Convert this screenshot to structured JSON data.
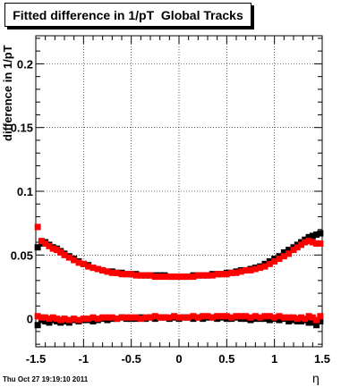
{
  "chart_data": {
    "type": "scatter",
    "title": "Fitted difference in 1/pT  Global Tracks",
    "xlabel": "η",
    "ylabel": "difference in 1/pT",
    "xlim": [
      -1.5,
      1.5
    ],
    "ylim": [
      -0.022,
      0.222
    ],
    "x_ticks": [
      "-1.5",
      "-1",
      "-0.5",
      "0",
      "0.5",
      "1",
      "1.5"
    ],
    "x_tick_values": [
      -1.5,
      -1,
      -0.5,
      0,
      0.5,
      1,
      1.5
    ],
    "y_ticks": [
      "0",
      "0.05",
      "0.1",
      "0.15",
      "0.2"
    ],
    "y_tick_values": [
      0,
      0.05,
      0.1,
      0.15,
      0.2
    ],
    "grid": true,
    "timestamp": "Thu Oct 27 19:19:10 2011",
    "series": [
      {
        "color": "#000000",
        "marker": "square",
        "x": [
          -1.48,
          -1.44,
          -1.4,
          -1.36,
          -1.32,
          -1.28,
          -1.24,
          -1.2,
          -1.15,
          -1.1,
          -1.05,
          -1.0,
          -0.95,
          -0.9,
          -0.85,
          -0.8,
          -0.75,
          -0.7,
          -0.65,
          -0.6,
          -0.55,
          -0.5,
          -0.45,
          -0.4,
          -0.35,
          -0.3,
          -0.25,
          -0.2,
          -0.15,
          -0.1,
          -0.05,
          0.0,
          0.05,
          0.1,
          0.15,
          0.2,
          0.25,
          0.3,
          0.35,
          0.4,
          0.45,
          0.5,
          0.55,
          0.6,
          0.65,
          0.7,
          0.75,
          0.8,
          0.85,
          0.9,
          0.95,
          1.0,
          1.05,
          1.1,
          1.15,
          1.2,
          1.24,
          1.28,
          1.32,
          1.36,
          1.4,
          1.44,
          1.48
        ],
        "y": [
          0.056,
          0.059,
          0.06,
          0.058,
          0.056,
          0.055,
          0.053,
          0.051,
          0.049,
          0.047,
          0.045,
          0.043,
          0.042,
          0.04,
          0.039,
          0.038,
          0.037,
          0.037,
          0.036,
          0.036,
          0.035,
          0.035,
          0.035,
          0.034,
          0.034,
          0.034,
          0.034,
          0.034,
          0.034,
          0.033,
          0.033,
          0.033,
          0.033,
          0.033,
          0.034,
          0.034,
          0.034,
          0.034,
          0.035,
          0.035,
          0.035,
          0.036,
          0.036,
          0.037,
          0.038,
          0.038,
          0.039,
          0.04,
          0.041,
          0.043,
          0.045,
          0.047,
          0.049,
          0.052,
          0.054,
          0.056,
          0.058,
          0.06,
          0.062,
          0.064,
          0.065,
          0.066,
          0.067
        ]
      },
      {
        "color": "#ff0000",
        "marker": "square",
        "x": [
          -1.48,
          -1.44,
          -1.4,
          -1.36,
          -1.32,
          -1.28,
          -1.24,
          -1.2,
          -1.15,
          -1.1,
          -1.05,
          -1.0,
          -0.95,
          -0.9,
          -0.85,
          -0.8,
          -0.75,
          -0.7,
          -0.65,
          -0.6,
          -0.55,
          -0.5,
          -0.45,
          -0.4,
          -0.35,
          -0.3,
          -0.25,
          -0.2,
          -0.15,
          -0.1,
          -0.05,
          0.0,
          0.05,
          0.1,
          0.15,
          0.2,
          0.25,
          0.3,
          0.35,
          0.4,
          0.45,
          0.5,
          0.55,
          0.6,
          0.65,
          0.7,
          0.75,
          0.8,
          0.85,
          0.9,
          0.95,
          1.0,
          1.05,
          1.1,
          1.15,
          1.2,
          1.24,
          1.28,
          1.32,
          1.36,
          1.4,
          1.44,
          1.48
        ],
        "y": [
          0.072,
          0.061,
          0.059,
          0.057,
          0.055,
          0.054,
          0.052,
          0.05,
          0.048,
          0.046,
          0.044,
          0.043,
          0.041,
          0.04,
          0.039,
          0.038,
          0.037,
          0.036,
          0.036,
          0.035,
          0.035,
          0.035,
          0.034,
          0.034,
          0.034,
          0.034,
          0.033,
          0.033,
          0.033,
          0.033,
          0.033,
          0.033,
          0.033,
          0.033,
          0.033,
          0.034,
          0.034,
          0.034,
          0.034,
          0.035,
          0.035,
          0.035,
          0.036,
          0.036,
          0.037,
          0.038,
          0.038,
          0.039,
          0.04,
          0.041,
          0.043,
          0.045,
          0.047,
          0.049,
          0.051,
          0.054,
          0.056,
          0.058,
          0.06,
          0.061,
          0.06,
          0.059,
          0.059
        ]
      },
      {
        "color": "#000000",
        "marker": "square",
        "x": [
          -1.48,
          -1.44,
          -1.4,
          -1.36,
          -1.32,
          -1.28,
          -1.24,
          -1.2,
          -1.15,
          -1.1,
          -1.05,
          -1.0,
          -0.95,
          -0.9,
          -0.85,
          -0.8,
          -0.75,
          -0.7,
          -0.65,
          -0.6,
          -0.55,
          -0.5,
          -0.45,
          -0.4,
          -0.35,
          -0.3,
          -0.25,
          -0.2,
          -0.15,
          -0.1,
          -0.05,
          0.0,
          0.05,
          0.1,
          0.15,
          0.2,
          0.25,
          0.3,
          0.35,
          0.4,
          0.45,
          0.5,
          0.55,
          0.6,
          0.65,
          0.7,
          0.75,
          0.8,
          0.85,
          0.9,
          0.95,
          1.0,
          1.05,
          1.1,
          1.15,
          1.2,
          1.24,
          1.28,
          1.32,
          1.36,
          1.4,
          1.44,
          1.48
        ],
        "y": [
          -0.005,
          -0.001,
          -0.002,
          -0.003,
          -0.001,
          -0.002,
          -0.003,
          -0.002,
          -0.003,
          -0.001,
          -0.002,
          -0.001,
          -0.001,
          -0.002,
          -0.001,
          0.0,
          -0.001,
          0.0,
          0.0,
          0.001,
          0.0,
          0.0,
          0.0,
          0.001,
          0.0,
          0.001,
          0.0,
          0.001,
          0.001,
          0.0,
          0.001,
          0.0,
          0.001,
          0.001,
          0.0,
          0.001,
          0.0,
          0.001,
          0.001,
          0.0,
          0.001,
          0.0,
          0.0,
          0.001,
          0.0,
          0.0,
          -0.001,
          0.0,
          0.0,
          0.0,
          -0.001,
          0.0,
          -0.001,
          0.0,
          -0.002,
          -0.001,
          -0.002,
          -0.002,
          -0.001,
          -0.003,
          -0.003,
          -0.005,
          -0.002
        ]
      },
      {
        "color": "#ff0000",
        "marker": "square",
        "x": [
          -1.48,
          -1.44,
          -1.4,
          -1.36,
          -1.32,
          -1.28,
          -1.24,
          -1.2,
          -1.15,
          -1.1,
          -1.05,
          -1.0,
          -0.95,
          -0.9,
          -0.85,
          -0.8,
          -0.75,
          -0.7,
          -0.65,
          -0.6,
          -0.55,
          -0.5,
          -0.45,
          -0.4,
          -0.35,
          -0.3,
          -0.25,
          -0.2,
          -0.15,
          -0.1,
          -0.05,
          0.0,
          0.05,
          0.1,
          0.15,
          0.2,
          0.25,
          0.3,
          0.35,
          0.4,
          0.45,
          0.5,
          0.55,
          0.6,
          0.65,
          0.7,
          0.75,
          0.8,
          0.85,
          0.9,
          0.95,
          1.0,
          1.05,
          1.1,
          1.15,
          1.2,
          1.24,
          1.28,
          1.32,
          1.36,
          1.4,
          1.44,
          1.48
        ],
        "y": [
          0.002,
          0.001,
          0.001,
          0.0,
          0.001,
          0.0,
          -0.001,
          0.0,
          -0.001,
          0.0,
          -0.001,
          0.0,
          0.0,
          0.001,
          0.0,
          0.001,
          0.001,
          0.001,
          0.0,
          0.001,
          0.001,
          0.001,
          0.001,
          0.0,
          0.001,
          0.001,
          0.002,
          0.001,
          0.001,
          0.001,
          0.002,
          0.001,
          0.001,
          0.001,
          0.002,
          0.001,
          0.002,
          0.002,
          0.001,
          0.002,
          0.002,
          0.002,
          0.001,
          0.002,
          0.002,
          0.002,
          0.001,
          0.002,
          0.001,
          0.002,
          0.002,
          0.001,
          0.002,
          0.001,
          0.001,
          0.001,
          0.0,
          0.001,
          0.0,
          0.002,
          0.001,
          -0.001,
          0.002
        ]
      }
    ]
  }
}
